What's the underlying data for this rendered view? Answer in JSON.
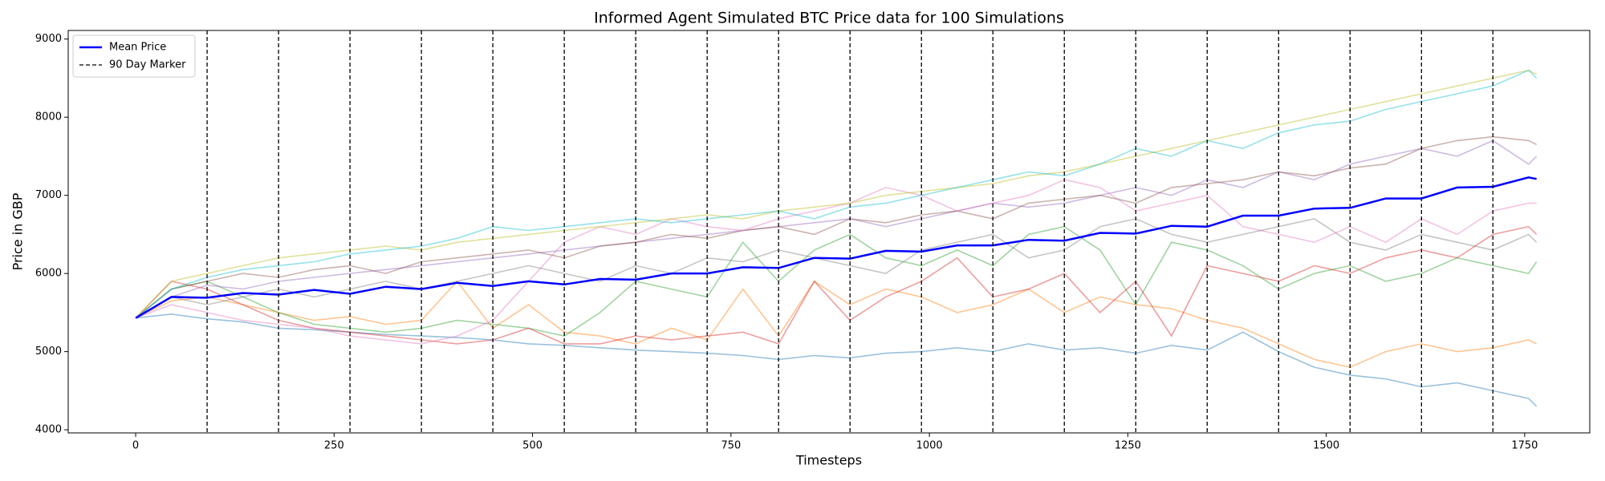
{
  "chart_data": {
    "type": "line",
    "title": "Informed Agent Simulated BTC Price data for 100 Simulations",
    "x_label": "Timesteps",
    "y_label": "Price in GBP",
    "xlim": [
      -85,
      1832
    ],
    "ylim": [
      3960,
      9110
    ],
    "xticks": [
      0,
      250,
      500,
      750,
      1000,
      1250,
      1500,
      1750
    ],
    "yticks": [
      4000,
      5000,
      6000,
      7000,
      8000,
      9000
    ],
    "legend": "upper left",
    "x": [
      0,
      45,
      90,
      135,
      180,
      225,
      270,
      315,
      360,
      405,
      450,
      495,
      540,
      585,
      630,
      675,
      720,
      765,
      810,
      855,
      900,
      945,
      990,
      1035,
      1080,
      1125,
      1170,
      1215,
      1260,
      1305,
      1350,
      1395,
      1440,
      1485,
      1530,
      1575,
      1620,
      1665,
      1710,
      1755,
      1765
    ],
    "simulations": [
      {
        "color": "#1f77b4",
        "values": [
          5430,
          5480,
          5420,
          5380,
          5300,
          5280,
          5250,
          5220,
          5200,
          5180,
          5150,
          5100,
          5080,
          5050,
          5020,
          5000,
          4980,
          4950,
          4900,
          4950,
          4920,
          4980,
          5000,
          5050,
          5000,
          5100,
          5020,
          5050,
          4980,
          5080,
          5020,
          5250,
          5000,
          4800,
          4700,
          4650,
          4550,
          4600,
          4500,
          4400,
          4300
        ]
      },
      {
        "color": "#ff7f0e",
        "values": [
          5430,
          5650,
          5700,
          5600,
          5500,
          5400,
          5450,
          5350,
          5400,
          5900,
          5300,
          5600,
          5250,
          5200,
          5100,
          5300,
          5150,
          5800,
          5200,
          5900,
          5600,
          5800,
          5700,
          5500,
          5600,
          5800,
          5500,
          5700,
          5600,
          5550,
          5400,
          5300,
          5100,
          4900,
          4800,
          5000,
          5100,
          5000,
          5050,
          5150,
          5100
        ]
      },
      {
        "color": "#2ca02c",
        "values": [
          5430,
          5800,
          5900,
          5700,
          5500,
          5350,
          5300,
          5250,
          5300,
          5400,
          5350,
          5300,
          5200,
          5500,
          5900,
          5800,
          5700,
          6400,
          5900,
          6300,
          6500,
          6200,
          6100,
          6300,
          6100,
          6500,
          6600,
          6300,
          5600,
          6400,
          6300,
          6100,
          5800,
          6000,
          6100,
          5900,
          6000,
          6200,
          6100,
          6000,
          6150
        ]
      },
      {
        "color": "#d62728",
        "values": [
          5430,
          5900,
          5800,
          5600,
          5400,
          5300,
          5250,
          5200,
          5150,
          5100,
          5150,
          5300,
          5100,
          5100,
          5200,
          5150,
          5200,
          5250,
          5100,
          5900,
          5400,
          5700,
          5900,
          6200,
          5700,
          5800,
          6000,
          5500,
          5900,
          5200,
          6100,
          6000,
          5900,
          6100,
          6000,
          6200,
          6300,
          6200,
          6500,
          6600,
          6500
        ]
      },
      {
        "color": "#9467bd",
        "values": [
          5430,
          5700,
          5850,
          5800,
          5900,
          5950,
          6000,
          6050,
          6100,
          6150,
          6200,
          6250,
          6300,
          6350,
          6400,
          6450,
          6500,
          6550,
          6600,
          6650,
          6700,
          6600,
          6700,
          6800,
          6900,
          6850,
          6900,
          7000,
          7100,
          7000,
          7200,
          7100,
          7300,
          7200,
          7400,
          7500,
          7600,
          7500,
          7700,
          7400,
          7500
        ]
      },
      {
        "color": "#8c564b",
        "values": [
          5430,
          5800,
          5900,
          6000,
          5950,
          6050,
          6100,
          6000,
          6150,
          6200,
          6250,
          6300,
          6200,
          6350,
          6400,
          6500,
          6450,
          6550,
          6600,
          6500,
          6700,
          6650,
          6750,
          6800,
          6700,
          6900,
          6950,
          7000,
          6900,
          7100,
          7150,
          7200,
          7300,
          7250,
          7350,
          7400,
          7600,
          7700,
          7750,
          7700,
          7650
        ]
      },
      {
        "color": "#e377c2",
        "values": [
          5430,
          5600,
          5500,
          5400,
          5350,
          5300,
          5200,
          5150,
          5100,
          5200,
          5400,
          5900,
          6400,
          6600,
          6500,
          6700,
          6600,
          6550,
          6700,
          6800,
          6900,
          7100,
          7000,
          6800,
          6900,
          7000,
          7200,
          7100,
          6800,
          6900,
          7000,
          6600,
          6500,
          6400,
          6600,
          6400,
          6700,
          6500,
          6800,
          6900,
          6900
        ]
      },
      {
        "color": "#7f7f7f",
        "values": [
          5430,
          5700,
          5600,
          5700,
          5800,
          5700,
          5800,
          5900,
          5800,
          5900,
          6000,
          6100,
          6000,
          5900,
          6100,
          6000,
          6200,
          6150,
          6300,
          6200,
          6100,
          6000,
          6300,
          6400,
          6500,
          6200,
          6300,
          6600,
          6700,
          6500,
          6400,
          6500,
          6600,
          6700,
          6400,
          6300,
          6500,
          6400,
          6300,
          6500,
          6400
        ]
      },
      {
        "color": "#bcbd22",
        "values": [
          5430,
          5900,
          6000,
          6100,
          6200,
          6250,
          6300,
          6350,
          6300,
          6400,
          6450,
          6500,
          6550,
          6600,
          6650,
          6700,
          6750,
          6700,
          6800,
          6850,
          6900,
          7000,
          7050,
          7100,
          7150,
          7250,
          7300,
          7400,
          7500,
          7600,
          7700,
          7800,
          7900,
          8000,
          8100,
          8200,
          8300,
          8400,
          8500,
          8600,
          8550
        ]
      },
      {
        "color": "#17becf",
        "values": [
          5430,
          5800,
          5950,
          6050,
          6100,
          6150,
          6250,
          6300,
          6350,
          6450,
          6600,
          6550,
          6600,
          6650,
          6700,
          6650,
          6700,
          6750,
          6800,
          6700,
          6850,
          6900,
          7000,
          7100,
          7200,
          7300,
          7250,
          7400,
          7600,
          7500,
          7700,
          7600,
          7800,
          7900,
          7950,
          8100,
          8200,
          8300,
          8400,
          8600,
          8500
        ]
      }
    ],
    "series": [
      {
        "name": "Mean Price",
        "color": "#0000ff",
        "values": [
          5430,
          5700,
          5690,
          5750,
          5730,
          5790,
          5740,
          5830,
          5800,
          5880,
          5840,
          5900,
          5860,
          5930,
          5920,
          6000,
          6000,
          6080,
          6070,
          6200,
          6190,
          6290,
          6280,
          6360,
          6360,
          6430,
          6420,
          6520,
          6510,
          6610,
          6600,
          6740,
          6740,
          6830,
          6840,
          6960,
          6960,
          7100,
          7110,
          7230,
          7210
        ]
      }
    ],
    "markers": {
      "name": "90 Day Marker",
      "color": "#000000",
      "x": [
        90,
        180,
        270,
        360,
        450,
        540,
        630,
        720,
        810,
        900,
        990,
        1080,
        1170,
        1260,
        1350,
        1440,
        1530,
        1620,
        1710
      ]
    }
  }
}
